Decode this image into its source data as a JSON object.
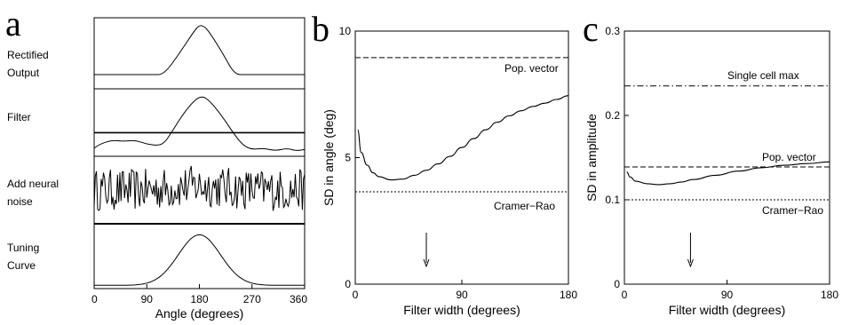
{
  "chart_data": [
    {
      "panel": "a",
      "type": "line",
      "subplots": [
        {
          "label_lines": [
            "Rectified",
            "Output"
          ],
          "x": [
            0,
            100,
            120,
            150,
            170,
            180,
            190,
            200,
            220,
            240,
            260,
            300,
            360
          ],
          "y": [
            0.2,
            0.2,
            0.2,
            0.55,
            0.8,
            0.9,
            0.87,
            0.76,
            0.5,
            0.2,
            0.2,
            0.2,
            0.2
          ],
          "ylim": [
            0,
            1
          ]
        },
        {
          "label_lines": [
            "Filter"
          ],
          "x": [
            0,
            10,
            30,
            50,
            70,
            90,
            110,
            120,
            130,
            150,
            170,
            185,
            200,
            220,
            240,
            255,
            270,
            290,
            310,
            330,
            345,
            360
          ],
          "y": [
            0.12,
            0.18,
            0.24,
            0.22,
            0.24,
            0.18,
            0.16,
            0.2,
            0.32,
            0.6,
            0.82,
            0.9,
            0.8,
            0.58,
            0.32,
            0.16,
            0.1,
            0.12,
            0.08,
            0.12,
            0.08,
            0.1
          ],
          "ylim": [
            0,
            1
          ],
          "baseline_y": 0.35
        },
        {
          "label_lines": [
            "Add neural",
            "noise"
          ],
          "noisy": true,
          "ylim": [
            0,
            1
          ]
        },
        {
          "label_lines": [
            "Tuning",
            "Curve"
          ],
          "gaussian": {
            "center": 180,
            "sd": 36,
            "base": 0.05,
            "peak": 0.78
          },
          "ylim": [
            0,
            1
          ]
        }
      ],
      "xticks": [
        0,
        90,
        180,
        270,
        360
      ],
      "xlabel": "Angle (degrees)",
      "xlim": [
        0,
        360
      ]
    },
    {
      "panel": "b",
      "type": "line",
      "xlabel": "Filter width (degrees)",
      "ylabel": "SD in angle (deg)",
      "xlim": [
        0,
        180
      ],
      "ylim": [
        0,
        10
      ],
      "xticks": [
        0,
        90,
        180
      ],
      "yticks": [
        0,
        5,
        10
      ],
      "series": [
        {
          "style": "solid",
          "x": [
            2,
            5,
            10,
            15,
            20,
            30,
            40,
            50,
            60,
            70,
            80,
            90,
            100,
            110,
            120,
            130,
            140,
            150,
            160,
            170,
            180
          ],
          "y": [
            6.1,
            5.2,
            4.7,
            4.4,
            4.25,
            4.12,
            4.15,
            4.3,
            4.5,
            4.75,
            5.05,
            5.4,
            5.75,
            6.1,
            6.4,
            6.65,
            6.85,
            7.02,
            7.15,
            7.3,
            7.45
          ]
        }
      ],
      "hlines": [
        {
          "y": 8.95,
          "style": "dashed",
          "label": "Pop. vector"
        },
        {
          "y": 3.65,
          "style": "dotted",
          "label": "Cramer−Rao"
        }
      ],
      "arrow_x": 60
    },
    {
      "panel": "c",
      "type": "line",
      "xlabel": "Filter width (degrees)",
      "ylabel": "SD in amplitude",
      "xlim": [
        0,
        180
      ],
      "ylim": [
        0,
        0.3
      ],
      "xticks": [
        0,
        90,
        180
      ],
      "yticks": [
        0,
        0.1,
        0.2,
        0.3
      ],
      "ytick_labels": [
        "0",
        "0.1",
        "0.2",
        "0.3"
      ],
      "series": [
        {
          "style": "solid",
          "x": [
            2,
            5,
            10,
            20,
            30,
            40,
            50,
            60,
            80,
            100,
            120,
            140,
            160,
            180
          ],
          "y": [
            0.133,
            0.127,
            0.122,
            0.119,
            0.118,
            0.119,
            0.121,
            0.124,
            0.129,
            0.134,
            0.138,
            0.141,
            0.143,
            0.145
          ]
        }
      ],
      "hlines": [
        {
          "y": 0.235,
          "style": "dashdot",
          "label": "Single cell max"
        },
        {
          "y": 0.139,
          "style": "dashed",
          "label": "Pop. vector"
        },
        {
          "y": 0.1,
          "style": "dotted",
          "label": "Cramer−Rao"
        }
      ],
      "arrow_x": 58
    }
  ]
}
